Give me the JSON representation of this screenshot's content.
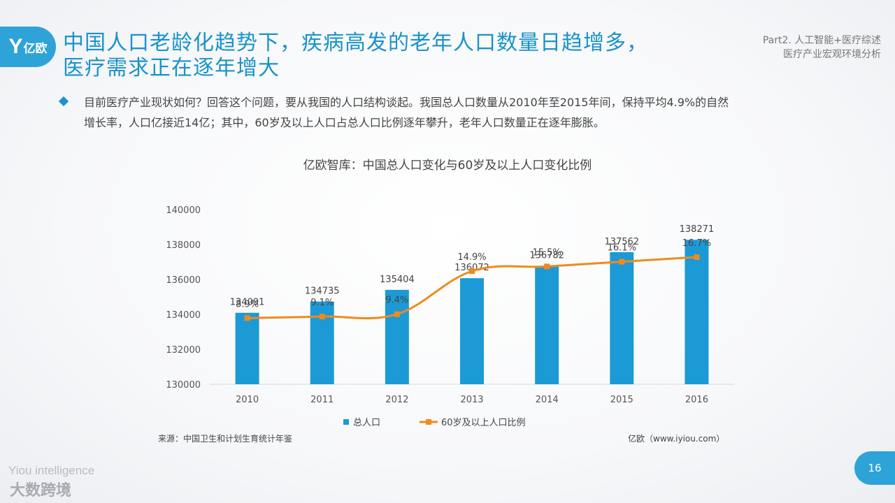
{
  "logo": {
    "mark": "Y",
    "text": "亿欧"
  },
  "title": {
    "line1": "中国人口老龄化趋势下，疾病高发的老年人口数量日趋增多，",
    "line2": "医疗需求正在逐年增大"
  },
  "section": {
    "line1": "Part2. 人工智能+医疗综述",
    "line2": "医疗产业宏观环境分析"
  },
  "bullet": {
    "line1": "目前医疗产业现状如何？回答这个问题，要从我国的人口结构谈起。我国总人口数量从2010年至2015年间，保持平均4.9%的自然",
    "line2": "增长率，人口亿接近14亿；其中，60岁及以上人口占总人口比例逐年攀升，老年人口数量正在逐年膨胀。"
  },
  "chart_data": {
    "type": "bar",
    "title": "亿欧智库：中国总人口变化与60岁及以上人口变化比例",
    "categories": [
      "2010",
      "2011",
      "2012",
      "2013",
      "2014",
      "2015",
      "2016"
    ],
    "series": [
      {
        "name": "总人口",
        "type": "bar",
        "values": [
          134091,
          134735,
          135404,
          136072,
          136782,
          137562,
          138271
        ],
        "labels": [
          "134091",
          "134735",
          "135404",
          "136072",
          "136782",
          "137562",
          "138271"
        ],
        "color": "#1c9ad6"
      },
      {
        "name": "60岁及以上人口比例",
        "type": "line",
        "values": [
          8.9,
          9.1,
          9.4,
          14.9,
          15.5,
          16.1,
          16.7
        ],
        "labels": [
          "8.9%",
          "9.1%",
          "9.4%",
          "14.9%",
          "15.5%",
          "16.1%",
          "16.7%"
        ],
        "color": "#f08a1c"
      }
    ],
    "yticks": [
      "130000",
      "132000",
      "134000",
      "136000",
      "138000",
      "140000"
    ],
    "ylim": [
      130000,
      140000
    ],
    "grid": false,
    "legend": "bottom"
  },
  "footer": {
    "source": "来源：中国卫生和计划生育统计年鉴",
    "credit": "亿欧（www.iyiou.com）",
    "page": "16",
    "brand_en": "Yiou intelligence",
    "brand_zh": "大数跨境"
  }
}
